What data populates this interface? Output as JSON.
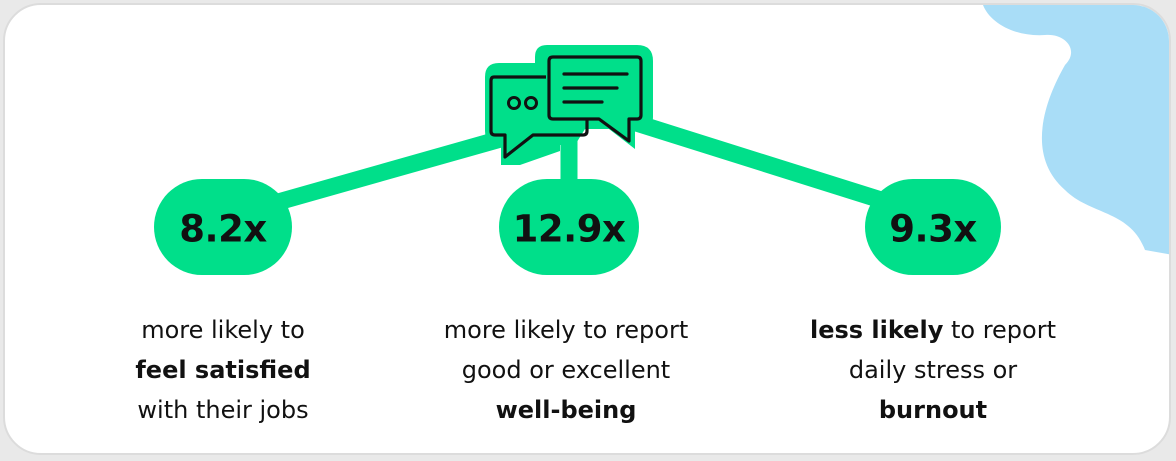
{
  "colors": {
    "accent": "#00df8a",
    "blob": "#a9ddf7",
    "text": "#111111",
    "background": "#ffffff"
  },
  "icon": {
    "name": "chat-bubbles-icon"
  },
  "stats": [
    {
      "value": "8.2x",
      "line1": "more likely to",
      "line2": "feel satisfied",
      "line3": "with their jobs"
    },
    {
      "value": "12.9x",
      "line1": "more likely to report",
      "line2": "good or excellent",
      "line3": "well-being"
    },
    {
      "value": "9.3x",
      "line1_bold": "less likely",
      "line1_rest": " to report",
      "line2": "daily stress or",
      "line3": "burnout"
    }
  ]
}
